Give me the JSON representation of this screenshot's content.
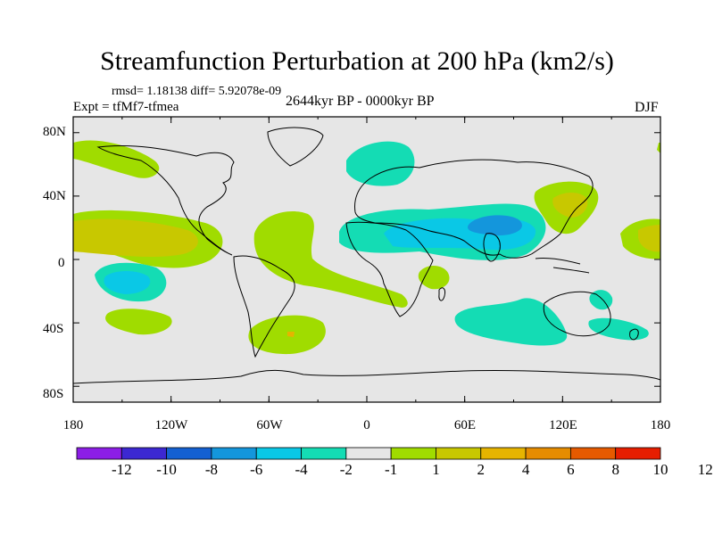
{
  "title": "Streamfunction Perturbation at 200 hPa (km2/s)",
  "stats": "rmsd= 1.18138  diff= 5.92078e-09",
  "experiment": "Expt = tfMf7-tfmea",
  "period": "2644kyr BP - 0000kyr BP",
  "season": "DJF",
  "lat_labels": [
    "80N",
    "40N",
    "0",
    "40S",
    "80S"
  ],
  "lon_labels": [
    "180",
    "120W",
    "60W",
    "0",
    "60E",
    "120E",
    "180"
  ],
  "colorbar": {
    "colors": [
      "#8c1ee6",
      "#3c28d2",
      "#1460d2",
      "#1496dc",
      "#0ac8e6",
      "#14dcb4",
      "#e6e6e6",
      "#a0dc00",
      "#c8c800",
      "#e6b400",
      "#e68c00",
      "#e65a00",
      "#e61e00"
    ],
    "labels": [
      "-12",
      "-10",
      "-8",
      "-6",
      "-4",
      "-2",
      "-1",
      "1",
      "2",
      "4",
      "6",
      "8",
      "10",
      "12"
    ]
  },
  "map_colors": {
    "background": "#e6e6e6",
    "pos_1": "#a0dc00",
    "pos_2": "#c8c800",
    "pos_4": "#e6b400",
    "neg_1": "#14dcb4",
    "neg_2": "#0ac8e6",
    "neg_4": "#1496dc"
  }
}
